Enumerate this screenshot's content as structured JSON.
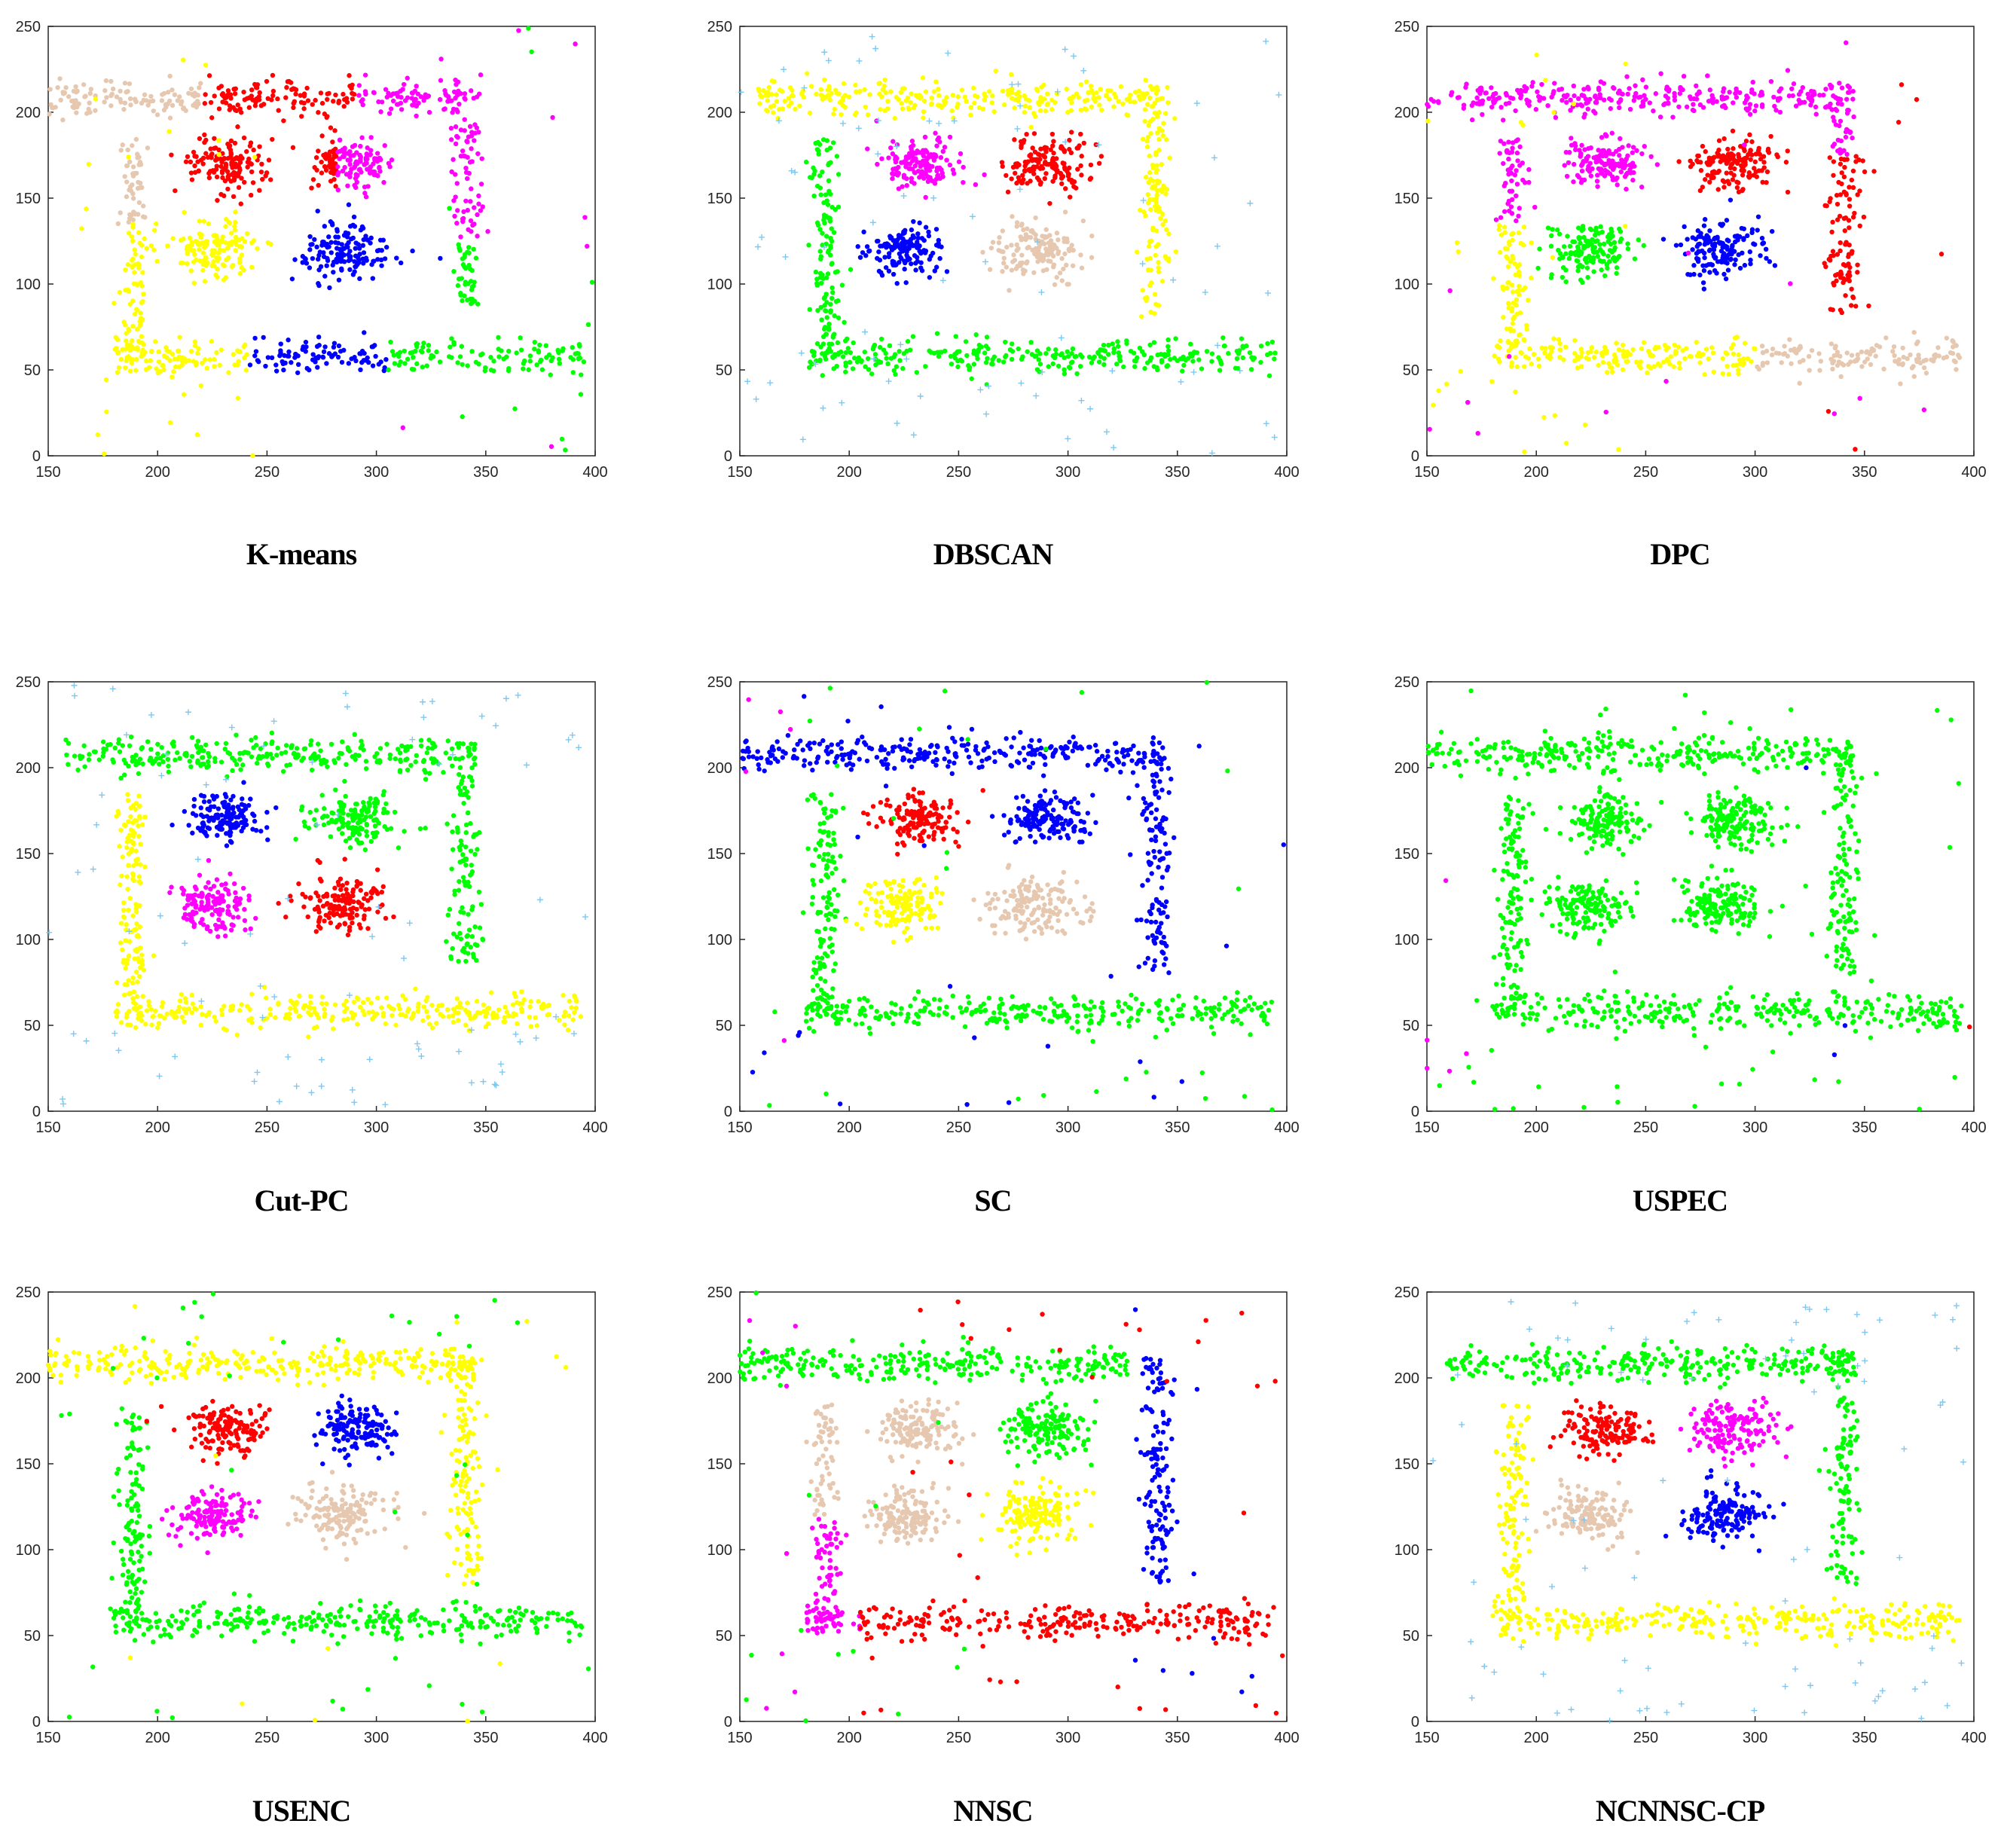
{
  "figure": {
    "colors": {
      "red": "#ff0000",
      "blue": "#0000ff",
      "green": "#00ff00",
      "yellow": "#ffff00",
      "magenta": "#ff00ff",
      "tan": "#e6c8b0",
      "noise": "#7ec8f0",
      "axis": "#262626"
    },
    "axes": {
      "xlim": [
        150,
        400
      ],
      "ylim": [
        0,
        250
      ],
      "xticks": [
        150,
        200,
        250,
        300,
        350,
        400
      ],
      "yticks": [
        0,
        50,
        100,
        150,
        200,
        250
      ]
    },
    "clusters": {
      "top_bar": {
        "x": [
          150,
          345
        ],
        "y": [
          198,
          218
        ]
      },
      "bottom_bar": {
        "x": [
          180,
          395
        ],
        "y": [
          48,
          68
        ]
      },
      "left_bar": {
        "x": [
          182,
          196
        ],
        "y": [
          55,
          185
        ]
      },
      "right_bar": {
        "x": [
          333,
          348
        ],
        "y": [
          80,
          215
        ]
      },
      "blob_tl": {
        "cx": 232,
        "cy": 170,
        "rx": 17,
        "ry": 14
      },
      "blob_tr": {
        "cx": 290,
        "cy": 170,
        "rx": 17,
        "ry": 14
      },
      "blob_bl": {
        "cx": 225,
        "cy": 120,
        "rx": 17,
        "ry": 14
      },
      "blob_br": {
        "cx": 285,
        "cy": 120,
        "rx": 18,
        "ry": 15
      }
    }
  },
  "chart_data": [
    {
      "type": "scatter",
      "title": "K-means",
      "xlim": [
        150,
        400
      ],
      "ylim": [
        0,
        250
      ],
      "groups": [
        {
          "region": "top_bar",
          "x": [
            150,
            220
          ],
          "color": "tan",
          "n": 110
        },
        {
          "region": "top_bar",
          "x": [
            220,
            290
          ],
          "color": "red",
          "n": 110
        },
        {
          "region": "top_bar",
          "x": [
            290,
            340
          ],
          "color": "magenta",
          "n": 75
        },
        {
          "region": "right_bar",
          "y": [
            125,
            215
          ],
          "color": "magenta",
          "n": 80
        },
        {
          "region": "right_bar",
          "y": [
            85,
            125
          ],
          "color": "green",
          "n": 40
        },
        {
          "region": "left_bar",
          "y": [
            135,
            185
          ],
          "color": "tan",
          "n": 50
        },
        {
          "region": "left_bar",
          "y": [
            55,
            135
          ],
          "color": "yellow",
          "n": 80
        },
        {
          "region": "bottom_bar",
          "x": [
            180,
            242
          ],
          "color": "yellow",
          "n": 90
        },
        {
          "region": "bottom_bar",
          "x": [
            242,
            305
          ],
          "color": "blue",
          "n": 90
        },
        {
          "region": "bottom_bar",
          "x": [
            305,
            395
          ],
          "color": "green",
          "n": 110
        },
        {
          "region": "blob_tl",
          "color": "red",
          "n": 140
        },
        {
          "region": "blob_tr",
          "x": [
            270,
            282
          ],
          "color": "red",
          "n": 50
        },
        {
          "region": "blob_tr",
          "x": [
            282,
            310
          ],
          "color": "magenta",
          "n": 100
        },
        {
          "region": "blob_bl",
          "color": "yellow",
          "n": 140
        },
        {
          "region": "blob_br",
          "color": "blue",
          "n": 150
        }
      ],
      "noise": [
        {
          "color": "yellow",
          "x": [
            150,
            245
          ],
          "n": 25
        },
        {
          "color": "magenta",
          "x": [
            310,
            400
          ],
          "n": 10
        },
        {
          "color": "green",
          "x": [
            330,
            400
          ],
          "n": 10
        }
      ]
    },
    {
      "type": "scatter",
      "title": "DBSCAN",
      "xlim": [
        150,
        400
      ],
      "ylim": [
        0,
        250
      ],
      "groups": [
        {
          "region": "top_bar",
          "x": [
            158,
            345
          ],
          "color": "yellow",
          "n": 280
        },
        {
          "region": "right_bar",
          "color": "yellow",
          "n": 120
        },
        {
          "region": "left_bar",
          "color": "green",
          "n": 130
        },
        {
          "region": "bottom_bar",
          "color": "green",
          "n": 300
        },
        {
          "region": "blob_tl",
          "color": "magenta",
          "n": 140
        },
        {
          "region": "blob_tr",
          "color": "red",
          "n": 150
        },
        {
          "region": "blob_bl",
          "color": "blue",
          "n": 140
        },
        {
          "region": "blob_br",
          "color": "tan",
          "n": 150
        }
      ],
      "noise": [
        {
          "color": "noise",
          "marker": "plus",
          "x": [
            150,
            400
          ],
          "n": 90
        }
      ]
    },
    {
      "type": "scatter",
      "title": "DPC",
      "xlim": [
        150,
        400
      ],
      "ylim": [
        0,
        250
      ],
      "groups": [
        {
          "region": "top_bar",
          "color": "magenta",
          "n": 290
        },
        {
          "region": "right_bar",
          "y": [
            175,
            215
          ],
          "color": "magenta",
          "n": 40
        },
        {
          "region": "right_bar",
          "y": [
            80,
            175
          ],
          "color": "red",
          "n": 100
        },
        {
          "region": "left_bar",
          "y": [
            135,
            185
          ],
          "color": "magenta",
          "n": 50
        },
        {
          "region": "left_bar",
          "y": [
            55,
            135
          ],
          "color": "yellow",
          "n": 80
        },
        {
          "region": "bottom_bar",
          "x": [
            180,
            300
          ],
          "color": "yellow",
          "n": 170
        },
        {
          "region": "bottom_bar",
          "x": [
            300,
            395
          ],
          "color": "tan",
          "n": 130
        },
        {
          "region": "blob_tl",
          "color": "magenta",
          "n": 140
        },
        {
          "region": "blob_tr",
          "color": "red",
          "n": 150
        },
        {
          "region": "blob_bl",
          "color": "green",
          "n": 140
        },
        {
          "region": "blob_br",
          "color": "blue",
          "n": 150
        }
      ],
      "noise": [
        {
          "color": "yellow",
          "x": [
            150,
            245
          ],
          "n": 25
        },
        {
          "color": "magenta",
          "x": [
            150,
            400
          ],
          "n": 18
        },
        {
          "color": "red",
          "x": [
            330,
            400
          ],
          "n": 8
        }
      ]
    },
    {
      "type": "scatter",
      "title": "Cut-PC",
      "xlim": [
        150,
        400
      ],
      "ylim": [
        0,
        250
      ],
      "groups": [
        {
          "region": "top_bar",
          "x": [
            158,
            345
          ],
          "color": "green",
          "n": 280
        },
        {
          "region": "right_bar",
          "color": "green",
          "n": 120
        },
        {
          "region": "left_bar",
          "color": "yellow",
          "n": 130
        },
        {
          "region": "bottom_bar",
          "color": "yellow",
          "n": 300
        },
        {
          "region": "blob_tl",
          "color": "blue",
          "n": 140
        },
        {
          "region": "blob_tr",
          "color": "green",
          "n": 150
        },
        {
          "region": "blob_bl",
          "color": "magenta",
          "n": 140
        },
        {
          "region": "blob_br",
          "color": "red",
          "n": 150
        }
      ],
      "noise": [
        {
          "color": "noise",
          "marker": "plus",
          "x": [
            150,
            400
          ],
          "n": 90
        }
      ]
    },
    {
      "type": "scatter",
      "title": "SC",
      "xlim": [
        150,
        400
      ],
      "ylim": [
        0,
        250
      ],
      "groups": [
        {
          "region": "top_bar",
          "color": "blue",
          "n": 290
        },
        {
          "region": "right_bar",
          "color": "blue",
          "n": 130
        },
        {
          "region": "left_bar",
          "color": "green",
          "n": 130
        },
        {
          "region": "bottom_bar",
          "color": "green",
          "n": 300
        },
        {
          "region": "blob_tl",
          "color": "red",
          "n": 140
        },
        {
          "region": "blob_tr",
          "color": "blue",
          "n": 150
        },
        {
          "region": "blob_bl",
          "color": "yellow",
          "n": 140
        },
        {
          "region": "blob_br",
          "color": "tan",
          "n": 150
        }
      ],
      "noise": [
        {
          "color": "blue",
          "x": [
            150,
            400
          ],
          "n": 25
        },
        {
          "color": "green",
          "x": [
            150,
            400
          ],
          "n": 30
        },
        {
          "color": "magenta",
          "x": [
            150,
            175
          ],
          "n": 5
        }
      ]
    },
    {
      "type": "scatter",
      "title": "USPEC",
      "xlim": [
        150,
        400
      ],
      "ylim": [
        0,
        250
      ],
      "groups": [
        {
          "region": "top_bar",
          "color": "green",
          "n": 290
        },
        {
          "region": "right_bar",
          "color": "green",
          "n": 130
        },
        {
          "region": "left_bar",
          "color": "green",
          "n": 130
        },
        {
          "region": "bottom_bar",
          "color": "green",
          "n": 300
        },
        {
          "region": "blob_tl",
          "color": "green",
          "n": 140
        },
        {
          "region": "blob_tr",
          "color": "green",
          "n": 150
        },
        {
          "region": "blob_bl",
          "color": "green",
          "n": 140
        },
        {
          "region": "blob_br",
          "color": "green",
          "n": 150
        }
      ],
      "noise": [
        {
          "color": "green",
          "x": [
            150,
            400
          ],
          "n": 60
        },
        {
          "color": "magenta",
          "x": [
            150,
            175
          ],
          "n": 5
        },
        {
          "color": "blue",
          "x": [
            320,
            350
          ],
          "n": 3
        },
        {
          "color": "red",
          "x": [
            395,
            400
          ],
          "n": 1
        }
      ]
    },
    {
      "type": "scatter",
      "title": "USENC",
      "xlim": [
        150,
        400
      ],
      "ylim": [
        0,
        250
      ],
      "groups": [
        {
          "region": "top_bar",
          "color": "yellow",
          "n": 290
        },
        {
          "region": "right_bar",
          "color": "yellow",
          "n": 130
        },
        {
          "region": "left_bar",
          "color": "green",
          "n": 130
        },
        {
          "region": "bottom_bar",
          "color": "green",
          "n": 300
        },
        {
          "region": "blob_tl",
          "color": "red",
          "n": 140
        },
        {
          "region": "blob_tr",
          "color": "blue",
          "n": 150
        },
        {
          "region": "blob_bl",
          "color": "magenta",
          "n": 140
        },
        {
          "region": "blob_br",
          "color": "tan",
          "n": 150
        }
      ],
      "noise": [
        {
          "color": "yellow",
          "x": [
            150,
            400
          ],
          "n": 20
        },
        {
          "color": "green",
          "x": [
            150,
            400
          ],
          "n": 40
        }
      ]
    },
    {
      "type": "scatter",
      "title": "NNSC",
      "xlim": [
        150,
        400
      ],
      "ylim": [
        0,
        250
      ],
      "groups": [
        {
          "region": "top_bar",
          "x": [
            150,
            328
          ],
          "color": "green",
          "n": 270
        },
        {
          "region": "right_bar",
          "color": "blue",
          "n": 140
        },
        {
          "region": "left_bar",
          "y": [
            120,
            185
          ],
          "color": "tan",
          "n": 60
        },
        {
          "region": "left_bar",
          "y": [
            55,
            120
          ],
          "color": "magenta",
          "n": 70
        },
        {
          "region": "bottom_bar",
          "x": [
            180,
            205
          ],
          "color": "magenta",
          "n": 40
        },
        {
          "region": "bottom_bar",
          "x": [
            205,
            395
          ],
          "color": "red",
          "n": 260
        },
        {
          "region": "blob_tl",
          "color": "tan",
          "n": 140
        },
        {
          "region": "blob_tr",
          "color": "green",
          "n": 150
        },
        {
          "region": "blob_bl",
          "color": "tan",
          "n": 140
        },
        {
          "region": "blob_br",
          "color": "yellow",
          "n": 150
        }
      ],
      "noise": [
        {
          "color": "red",
          "x": [
            200,
            400
          ],
          "n": 35
        },
        {
          "color": "blue",
          "x": [
            330,
            400
          ],
          "n": 10
        },
        {
          "color": "green",
          "x": [
            150,
            260
          ],
          "n": 15
        },
        {
          "color": "magenta",
          "x": [
            150,
            180
          ],
          "n": 8
        }
      ]
    },
    {
      "type": "scatter",
      "title": "NCNNSC-CP",
      "xlim": [
        150,
        400
      ],
      "ylim": [
        0,
        250
      ],
      "groups": [
        {
          "region": "top_bar",
          "x": [
            158,
            345
          ],
          "color": "green",
          "n": 280
        },
        {
          "region": "right_bar",
          "color": "green",
          "n": 120
        },
        {
          "region": "left_bar",
          "color": "yellow",
          "n": 130
        },
        {
          "region": "bottom_bar",
          "color": "yellow",
          "n": 300
        },
        {
          "region": "blob_tl",
          "color": "red",
          "n": 140
        },
        {
          "region": "blob_tr",
          "color": "magenta",
          "n": 150
        },
        {
          "region": "blob_bl",
          "color": "tan",
          "n": 140
        },
        {
          "region": "blob_br",
          "color": "blue",
          "n": 150
        }
      ],
      "noise": [
        {
          "color": "noise",
          "marker": "plus",
          "x": [
            150,
            400
          ],
          "n": 90
        }
      ]
    }
  ]
}
